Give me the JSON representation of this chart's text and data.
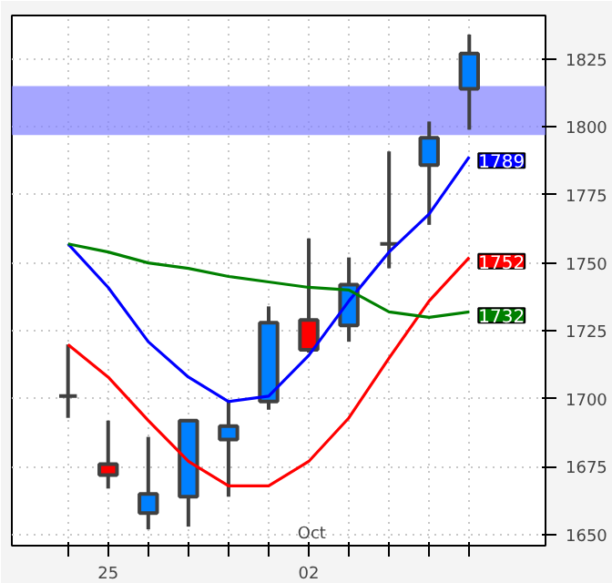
{
  "chart_data": {
    "type": "candlestick",
    "categories": [
      null,
      "25",
      null,
      null,
      null,
      null,
      "02",
      null,
      null,
      null,
      null
    ],
    "ohlc": [
      [
        1701,
        1720,
        1693,
        1701
      ],
      [
        1676,
        1692,
        1667,
        1672
      ],
      [
        1658,
        1686,
        1652,
        1665
      ],
      [
        1664,
        1692,
        1653,
        1692
      ],
      [
        1685,
        1699,
        1664,
        1690
      ],
      [
        1699,
        1734,
        1696,
        1728
      ],
      [
        1729,
        1759,
        1717,
        1718
      ],
      [
        1727,
        1752,
        1721,
        1742
      ],
      [
        1757,
        1791,
        1748,
        1757
      ],
      [
        1786,
        1802,
        1764,
        1796
      ],
      [
        1814,
        1834,
        1799,
        1827
      ]
    ],
    "colors": [
      "#404040",
      "#ff0000",
      "#0080ff",
      "#0080ff",
      "#0080ff",
      "#0080ff",
      "#ff0000",
      "#0080ff",
      "#404040",
      "#0080ff",
      "#0080ff"
    ],
    "series": [
      {
        "type": "line",
        "color": "#0000ff",
        "values": [
          1757,
          1741,
          1721,
          1708,
          1699,
          1701,
          1716,
          1736,
          1754,
          1768,
          1789
        ],
        "value_labels": [
          null,
          null,
          null,
          null,
          null,
          null,
          null,
          null,
          null,
          null,
          "1789"
        ]
      },
      {
        "type": "line",
        "color": "#ff0000",
        "values": [
          1720,
          1708,
          1692,
          1677,
          1668,
          1668,
          1677,
          1693,
          1715,
          1736,
          1752
        ],
        "value_labels": [
          null,
          null,
          null,
          null,
          null,
          null,
          null,
          null,
          null,
          null,
          "1752"
        ]
      },
      {
        "type": "line",
        "color": "#008000",
        "values": [
          1757,
          1754,
          1750,
          1748,
          1745,
          1743,
          1741,
          1740,
          1732,
          1730,
          1732
        ],
        "value_labels": [
          null,
          null,
          null,
          null,
          null,
          null,
          null,
          null,
          null,
          null,
          "1732"
        ]
      }
    ],
    "ylim": [
      1646,
      1841
    ],
    "yticks": [
      1650,
      1675,
      1700,
      1725,
      1750,
      1775,
      1800,
      1825
    ],
    "bands": [
      {
        "axis": "y",
        "from": 1797,
        "to": 1815,
        "color": "#8080ff"
      }
    ],
    "annotations": [
      "Oct"
    ],
    "grid": true
  }
}
